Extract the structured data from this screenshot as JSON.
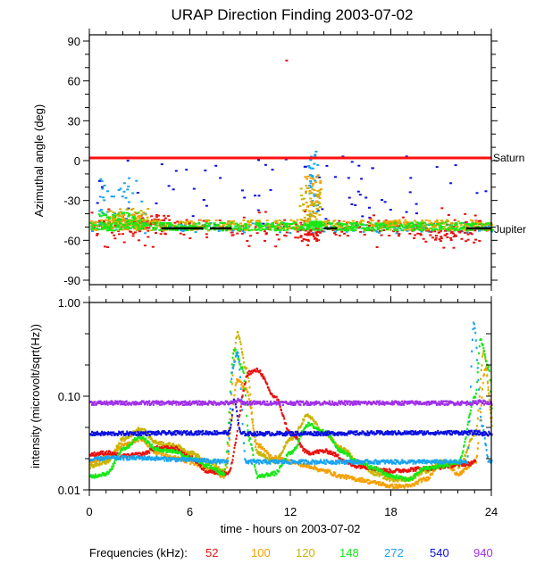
{
  "colors": {
    "f52": "#e8120f",
    "f100": "#f5a100",
    "f120": "#c9b400",
    "f148": "#17e817",
    "f272": "#1aa4f0",
    "f540": "#0a10e0",
    "f940": "#a030e8",
    "saturn": "#ff1010",
    "jupiter": "#000000"
  },
  "chart_data": [
    {
      "type": "scatter",
      "title": "URAP Direction Finding  2003-07-02",
      "xlabel": "",
      "ylabel": "Azimuthal angle (deg)",
      "xlim": [
        0,
        24
      ],
      "ylim": [
        -95,
        95
      ],
      "yticks": [
        90,
        60,
        30,
        0,
        -30,
        -60,
        -90
      ],
      "ytick_labels": [
        "90",
        "60",
        "30",
        "0",
        "-30",
        "-60",
        "-90"
      ],
      "reference_lines": [
        {
          "name": "Saturn",
          "label": "Saturn",
          "y": 2
        },
        {
          "name": "Jupiter",
          "label": "Jupiter",
          "y": -51
        }
      ],
      "series": [
        {
          "freq": "148",
          "baseline": -49,
          "spread": 3,
          "bursts": [
            [
              0.5,
              3,
              -38
            ],
            [
              13.2,
              13.8,
              -45
            ]
          ]
        },
        {
          "freq": "120",
          "baseline": -48,
          "spread": 4,
          "bursts": [
            [
              1,
              3.5,
              -35
            ],
            [
              12.5,
              13.7,
              -20
            ]
          ]
        },
        {
          "freq": "100",
          "baseline": -48,
          "spread": 4,
          "bursts": [
            [
              1.2,
              3,
              -40
            ],
            [
              12.8,
              13.8,
              -10
            ],
            [
              17.5,
              18.3,
              -45
            ]
          ]
        },
        {
          "freq": "52",
          "baseline": -50,
          "spread": 6,
          "bursts": [
            [
              2.5,
              4.5,
              -40
            ],
            [
              12.2,
              13.8,
              -60
            ],
            [
              19,
              23,
              -60
            ]
          ]
        },
        {
          "freq": "272",
          "baseline": -50,
          "spread": 3,
          "bursts": [
            [
              0.5,
              3.5,
              -10
            ],
            [
              13,
              13.6,
              10
            ]
          ]
        },
        {
          "freq": "540",
          "baseline": -25,
          "spread": 25,
          "bursts": []
        }
      ],
      "outliers": [
        {
          "freq": "52",
          "x": 11.7,
          "y": 76
        }
      ]
    },
    {
      "type": "line",
      "title": "",
      "xlabel": "time - hours on 2003-07-02",
      "ylabel": "intensity (microvolt/sqrt(Hz))",
      "xlim": [
        0,
        24
      ],
      "ylim": [
        0.01,
        1.0
      ],
      "yscale": "log",
      "xticks": [
        0,
        6,
        12,
        18,
        24
      ],
      "xtick_labels": [
        "0",
        "6",
        "12",
        "18",
        "24"
      ],
      "yticks": [
        1.0,
        0.1,
        0.01
      ],
      "ytick_labels": [
        "1.00",
        "0.10",
        "0.01"
      ],
      "legend": {
        "title": "Frequencies (kHz):",
        "placement": "bottom",
        "entries": [
          "52",
          "100",
          "120",
          "148",
          "272",
          "540",
          "940"
        ]
      },
      "series": [
        {
          "name": "940",
          "x": [
            0,
            8.5,
            8.8,
            9.2,
            23,
            23.3,
            23.6,
            24
          ],
          "y": [
            0.085,
            0.085,
            0.09,
            0.085,
            0.085,
            0.09,
            0.085,
            0.085
          ]
        },
        {
          "name": "540",
          "x": [
            0,
            8.3,
            8.6,
            9,
            23,
            23.5,
            24
          ],
          "y": [
            0.04,
            0.041,
            0.09,
            0.04,
            0.041,
            0.04,
            0.04
          ]
        },
        {
          "name": "272",
          "x": [
            0,
            1,
            3,
            6,
            8.2,
            8.5,
            8.8,
            9.3,
            12,
            15,
            18,
            22.5,
            22.9,
            23.4,
            23.8,
            24
          ],
          "y": [
            0.021,
            0.022,
            0.022,
            0.021,
            0.02,
            0.2,
            0.3,
            0.02,
            0.02,
            0.02,
            0.02,
            0.02,
            0.6,
            0.05,
            0.02,
            0.02
          ]
        },
        {
          "name": "52",
          "x": [
            0,
            1,
            2,
            3,
            4,
            5,
            6,
            7,
            8.2,
            9.5,
            10,
            11,
            12,
            13,
            14,
            16,
            18,
            20,
            22.5,
            23
          ],
          "y": [
            0.024,
            0.025,
            0.023,
            0.024,
            0.028,
            0.028,
            0.022,
            0.016,
            0.015,
            0.18,
            0.19,
            0.1,
            0.04,
            0.025,
            0.026,
            0.018,
            0.016,
            0.017,
            0.019,
            0.02
          ]
        },
        {
          "name": "148",
          "x": [
            0,
            1,
            2,
            3,
            4,
            5,
            6,
            7,
            8,
            8.6,
            9.1,
            9.5,
            10,
            11,
            12,
            13,
            14,
            15,
            16,
            17,
            18,
            19,
            20,
            21,
            22,
            23,
            23.3,
            23.8,
            24
          ],
          "y": [
            0.014,
            0.015,
            0.028,
            0.037,
            0.027,
            0.026,
            0.022,
            0.018,
            0.015,
            0.32,
            0.2,
            0.035,
            0.014,
            0.015,
            0.025,
            0.05,
            0.042,
            0.026,
            0.02,
            0.017,
            0.014,
            0.013,
            0.017,
            0.018,
            0.02,
            0.1,
            0.4,
            0.2,
            0.07
          ]
        },
        {
          "name": "120",
          "x": [
            0,
            1,
            2,
            3,
            4,
            5,
            6,
            7,
            8,
            8.8,
            9.3,
            10,
            11,
            12,
            13,
            14,
            15,
            16,
            17,
            18,
            19,
            20,
            21,
            22,
            23,
            23.5,
            24
          ],
          "y": [
            0.018,
            0.02,
            0.035,
            0.045,
            0.032,
            0.03,
            0.025,
            0.02,
            0.016,
            0.47,
            0.2,
            0.025,
            0.02,
            0.035,
            0.062,
            0.04,
            0.028,
            0.02,
            0.015,
            0.013,
            0.013,
            0.016,
            0.02,
            0.018,
            0.04,
            0.3,
            0.06
          ]
        },
        {
          "name": "100",
          "x": [
            0,
            1,
            2,
            3,
            4,
            5,
            6,
            7,
            8,
            8.8,
            9.3,
            10,
            11,
            12,
            13,
            14,
            15,
            16,
            17,
            18,
            19,
            20,
            21,
            22,
            23,
            23.6,
            24
          ],
          "y": [
            0.02,
            0.022,
            0.03,
            0.035,
            0.025,
            0.022,
            0.02,
            0.017,
            0.014,
            0.15,
            0.12,
            0.03,
            0.022,
            0.02,
            0.018,
            0.016,
            0.014,
            0.013,
            0.012,
            0.011,
            0.011,
            0.013,
            0.02,
            0.015,
            0.02,
            0.2,
            0.05
          ]
        }
      ]
    }
  ]
}
